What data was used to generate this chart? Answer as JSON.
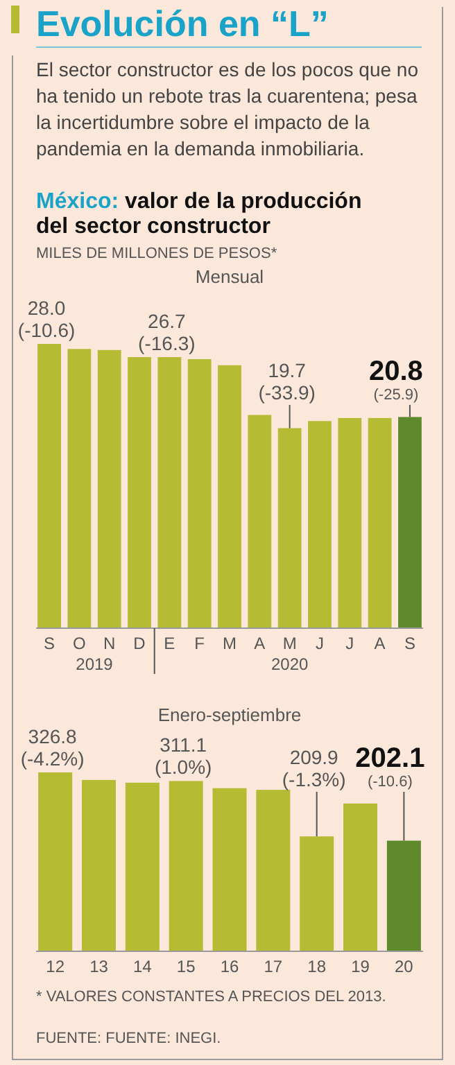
{
  "chart_data": [
    {
      "type": "bar",
      "title": "Mensual",
      "ylabel": "MILES DE MILLONES DE PESOS*",
      "annotations": [
        "Evolución en “L”",
        "El sector constructor es de los pocos que no ha tenido un rebote tras la cuarentena; pesa la incertidumbre sobre el impacto de la pandemia en la demanda inmobiliaria.",
        "México:",
        "valor de la producción del sector constructor",
        "2019",
        "2020"
      ],
      "categories": [
        "S",
        "O",
        "N",
        "D",
        "E",
        "F",
        "M",
        "A",
        "M",
        "J",
        "J",
        "A",
        "S"
      ],
      "values": [
        28.0,
        27.5,
        27.4,
        26.7,
        26.7,
        26.5,
        25.9,
        21.0,
        19.7,
        20.4,
        20.7,
        20.7,
        20.8
      ],
      "colors": [
        "#b5bb33",
        "#b5bb33",
        "#b5bb33",
        "#b5bb33",
        "#b5bb33",
        "#b5bb33",
        "#b5bb33",
        "#b5bb33",
        "#b5bb33",
        "#b5bb33",
        "#b5bb33",
        "#b5bb33",
        "#5f8a2c"
      ],
      "value_labels": [
        "28.0\n(-10.6)",
        null,
        null,
        null,
        "26.7\n(-16.3)",
        null,
        null,
        null,
        "19.7\n(-33.9)",
        null,
        null,
        null,
        "20.8\n(-25.9)"
      ]
    },
    {
      "type": "bar",
      "title": "Enero-septiembre",
      "annotations": [
        "* VALORES CONSTANTES A PRECIOS DEL 2013.",
        "FUENTE: FUENTE: INEGI."
      ],
      "categories": [
        "12",
        "13",
        "14",
        "15",
        "16",
        "17",
        "18",
        "19",
        "20"
      ],
      "values": [
        326.8,
        313,
        308,
        311.1,
        298,
        295,
        209.9,
        270,
        202.1
      ],
      "colors": [
        "#b5bb33",
        "#b5bb33",
        "#b5bb33",
        "#b5bb33",
        "#b5bb33",
        "#b5bb33",
        "#b5bb33",
        "#b5bb33",
        "#5f8a2c"
      ],
      "value_labels": [
        "326.8\n(-4.2%)",
        null,
        null,
        "311.1\n(1.0%)",
        null,
        null,
        "209.9\n(-1.3%)",
        null,
        "202.1\n(-10.6)"
      ]
    }
  ]
}
